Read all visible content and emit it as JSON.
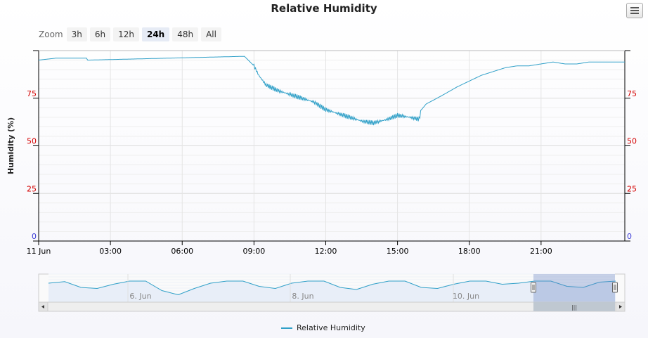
{
  "chart_data": {
    "type": "line",
    "title": "Relative Humidity",
    "ylabel": "Humidity (%)",
    "ylim": [
      0,
      100
    ],
    "yticks": [
      0,
      25,
      50,
      75
    ],
    "x_ticks": [
      "11 Jun",
      "03:00",
      "06:00",
      "09:00",
      "12:00",
      "15:00",
      "18:00",
      "21:00"
    ],
    "x_hours": [
      0,
      3,
      6,
      9,
      12,
      15,
      18,
      21
    ],
    "xlim_hours": [
      0,
      24.5
    ],
    "grid": true,
    "legend_position": "bottom-center",
    "series": [
      {
        "name": "Relative Humidity",
        "color": "#30a0c8",
        "x_hours": [
          0,
          0.7,
          0.75,
          2.0,
          2.05,
          8.6,
          9.0,
          9.2,
          9.5,
          10.0,
          10.5,
          11.0,
          11.5,
          12.0,
          12.5,
          13.0,
          13.5,
          14.0,
          14.3,
          14.6,
          15.0,
          15.5,
          15.9,
          16.0,
          16.2,
          16.8,
          17.5,
          18.0,
          18.5,
          19.0,
          19.5,
          20.0,
          20.5,
          21.0,
          21.5,
          22.0,
          22.5,
          23.0,
          24.5
        ],
        "values": [
          95,
          96,
          96,
          96,
          95,
          97,
          92,
          87,
          82,
          79,
          77,
          75,
          73,
          69,
          67,
          65,
          63,
          62,
          63,
          64,
          66,
          65,
          64,
          69,
          72,
          76,
          81,
          84,
          87,
          89,
          91,
          92,
          92,
          93,
          94,
          93,
          93,
          94,
          94
        ]
      }
    ]
  },
  "navigator": {
    "date_labels": [
      "6. Jun",
      "8. Jun",
      "10. Jun"
    ],
    "values": [
      92,
      95,
      84,
      82,
      90,
      96,
      96,
      78,
      70,
      82,
      92,
      96,
      96,
      86,
      82,
      92,
      96,
      96,
      84,
      80,
      90,
      96,
      96,
      84,
      82,
      90,
      96,
      96,
      90,
      92,
      96,
      96,
      86,
      84,
      94,
      96
    ]
  },
  "ui": {
    "zoom_label": "Zoom",
    "zoom_buttons": [
      "3h",
      "6h",
      "12h",
      "24h",
      "48h",
      "All"
    ],
    "active_zoom": "24h",
    "scrollbar_grip": "|||"
  }
}
